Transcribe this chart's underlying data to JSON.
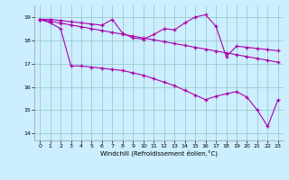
{
  "xlabel": "Windchill (Refroidissement éolien,°C)",
  "bg_color": "#cceeff",
  "line_color": "#aa00aa",
  "grid_color": "#99cccc",
  "ylim": [
    13.7,
    19.5
  ],
  "xlim": [
    -0.5,
    23.5
  ],
  "yticks": [
    14,
    15,
    16,
    17,
    18,
    19
  ],
  "xticks": [
    0,
    1,
    2,
    3,
    4,
    5,
    6,
    7,
    8,
    9,
    10,
    11,
    12,
    13,
    14,
    15,
    16,
    17,
    18,
    19,
    20,
    21,
    22,
    23
  ],
  "line1_x": [
    0,
    1,
    2,
    3,
    4,
    5,
    6,
    7,
    8,
    9,
    10,
    11,
    12,
    13,
    14,
    15,
    16,
    17,
    18,
    19,
    20,
    21,
    22,
    23
  ],
  "line1_y": [
    18.9,
    18.9,
    18.85,
    18.8,
    18.75,
    18.7,
    18.65,
    18.9,
    18.3,
    18.1,
    18.05,
    18.25,
    18.5,
    18.45,
    18.75,
    19.0,
    19.1,
    18.6,
    17.3,
    17.75,
    17.7,
    17.65,
    17.6,
    17.55
  ],
  "line2_x": [
    0,
    1,
    2,
    3,
    4,
    5,
    6,
    7,
    8,
    9,
    10,
    11,
    12,
    13,
    14,
    15,
    16,
    17,
    18,
    19,
    20,
    21,
    22,
    23
  ],
  "line2_y": [
    18.9,
    18.82,
    18.74,
    18.66,
    18.58,
    18.5,
    18.42,
    18.34,
    18.26,
    18.18,
    18.1,
    18.02,
    17.94,
    17.86,
    17.78,
    17.7,
    17.62,
    17.54,
    17.46,
    17.38,
    17.3,
    17.22,
    17.14,
    17.06
  ],
  "line3_x": [
    0,
    1,
    2,
    3,
    4,
    5,
    6,
    7,
    8,
    9,
    10,
    11,
    12,
    13,
    14,
    15,
    16,
    17,
    18,
    19,
    20,
    21,
    22,
    23
  ],
  "line3_y": [
    18.9,
    18.75,
    18.5,
    16.9,
    16.9,
    16.85,
    16.8,
    16.75,
    16.7,
    16.6,
    16.5,
    16.35,
    16.2,
    16.05,
    15.85,
    15.65,
    15.45,
    15.6,
    15.7,
    15.8,
    15.55,
    15.0,
    14.3,
    15.45
  ]
}
